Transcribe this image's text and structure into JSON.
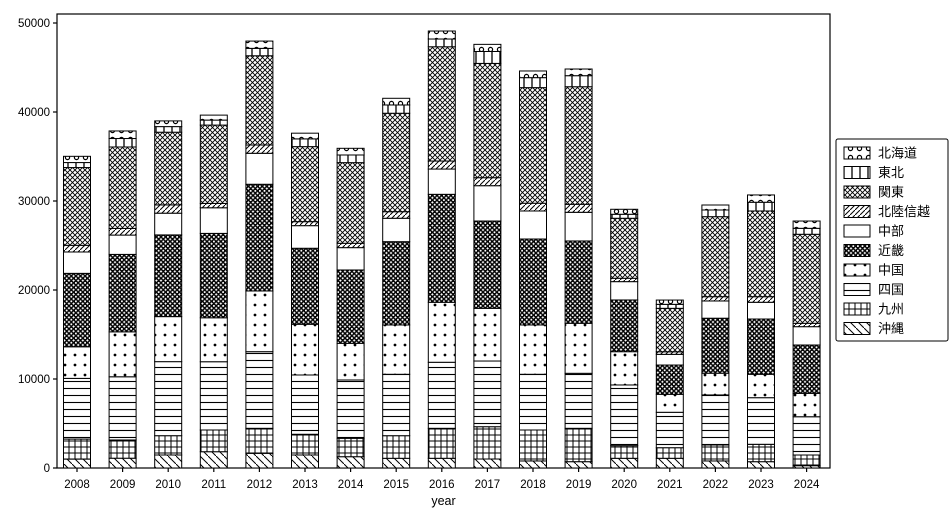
{
  "chart_data": {
    "type": "bar",
    "stacked": true,
    "title": "",
    "xlabel": "year",
    "ylabel": "",
    "grid": false,
    "legend_position": "right-outside",
    "ylim": [
      0,
      50000
    ],
    "yticks": [
      0,
      10000,
      20000,
      30000,
      40000,
      50000
    ],
    "categories": [
      "2008",
      "2009",
      "2010",
      "2011",
      "2012",
      "2013",
      "2014",
      "2015",
      "2016",
      "2017",
      "2018",
      "2019",
      "2020",
      "2021",
      "2022",
      "2023",
      "2024"
    ],
    "stack_order_bottom_to_top": [
      "沖縄",
      "九州",
      "四国",
      "中国",
      "近畿",
      "中部",
      "北陸信越",
      "関東",
      "東北",
      "北海道"
    ],
    "series": [
      {
        "name": "北海道",
        "pattern": "dots-large",
        "values": [
          700,
          850,
          640,
          560,
          820,
          640,
          750,
          750,
          900,
          800,
          750,
          750,
          560,
          480,
          560,
          820,
          820
        ]
      },
      {
        "name": "東北",
        "pattern": "vlines",
        "values": [
          560,
          950,
          630,
          560,
          830,
          870,
          860,
          930,
          870,
          1340,
          1120,
          1240,
          450,
          450,
          750,
          980,
          670
        ]
      },
      {
        "name": "関東",
        "pattern": "cross",
        "values": [
          8740,
          9150,
          8170,
          8800,
          10030,
          8430,
          9060,
          11060,
          12840,
          12840,
          12990,
          13210,
          6740,
          4880,
          8990,
          9630,
          10000
        ]
      },
      {
        "name": "北陸信越",
        "pattern": "diag",
        "values": [
          750,
          750,
          930,
          490,
          930,
          450,
          490,
          740,
          900,
          900,
          870,
          900,
          380,
          290,
          480,
          630,
          380
        ]
      },
      {
        "name": "中部",
        "pattern": "none",
        "values": [
          2400,
          2170,
          2440,
          2880,
          3480,
          2540,
          2510,
          2630,
          2840,
          3970,
          3150,
          3220,
          2060,
          1200,
          1940,
          1880,
          2060
        ]
      },
      {
        "name": "近畿",
        "pattern": "dots-dense",
        "values": [
          8250,
          8700,
          9180,
          9480,
          11990,
          8540,
          8240,
          9360,
          12130,
          9810,
          9660,
          9250,
          5810,
          3290,
          6180,
          6210,
          5430
        ]
      },
      {
        "name": "中国",
        "pattern": "dots-sparse",
        "values": [
          3550,
          5050,
          5060,
          4940,
          6820,
          5700,
          4120,
          5540,
          6740,
          5920,
          5540,
          5620,
          3740,
          2020,
          2440,
          2630,
          2630
        ]
      },
      {
        "name": "四国",
        "pattern": "hlines",
        "values": [
          6820,
          7100,
          8320,
          7670,
          8610,
          6660,
          6550,
          6900,
          7420,
          7380,
          6260,
          6180,
          6820,
          3980,
          5620,
          5240,
          4300
        ]
      },
      {
        "name": "九州",
        "pattern": "grid",
        "values": [
          2250,
          2050,
          2170,
          2440,
          2810,
          2330,
          2070,
          2540,
          3370,
          3630,
          3480,
          3750,
          1420,
          1190,
          1800,
          1950,
          1200
        ]
      },
      {
        "name": "沖縄",
        "pattern": "backdiag",
        "values": [
          1000,
          1100,
          1460,
          1830,
          1650,
          1460,
          1270,
          1090,
          1090,
          1010,
          790,
          710,
          1090,
          1090,
          790,
          710,
          260
        ]
      }
    ],
    "totals": [
      35020,
      37870,
      39000,
      39650,
      47970,
      37620,
      35920,
      41540,
      49100,
      47600,
      44610,
      44830,
      29070,
      18870,
      29550,
      30680,
      27750
    ],
    "colors": {
      "foreground": "#000000",
      "background": "#ffffff"
    }
  }
}
